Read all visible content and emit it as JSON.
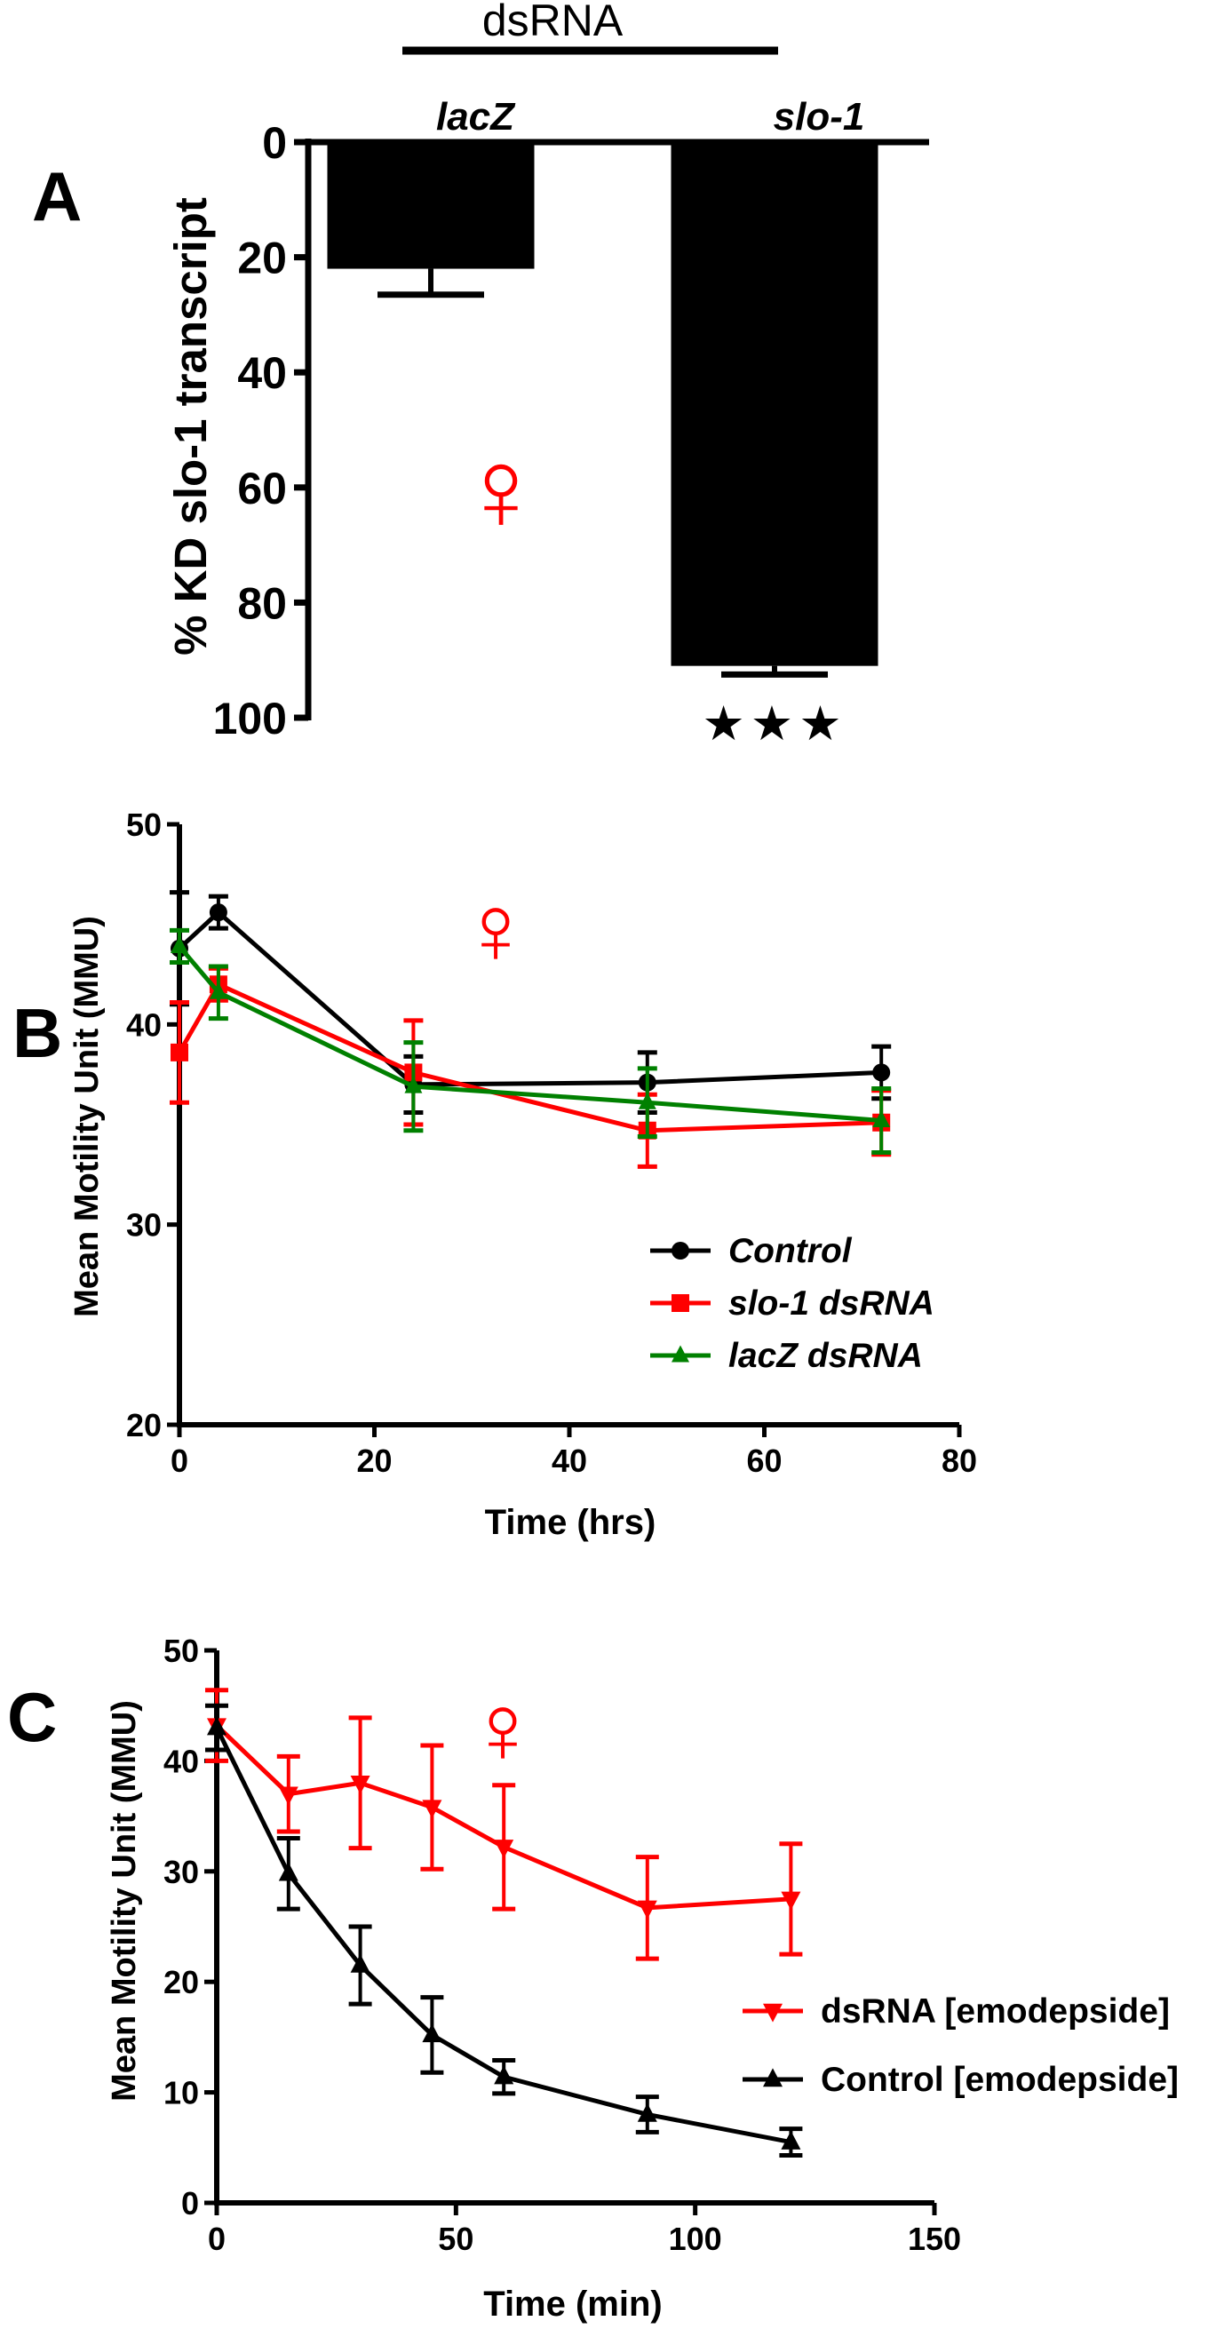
{
  "colors": {
    "black": "#000000",
    "red": "#ff0000",
    "green": "#008000"
  },
  "panel_a": {
    "letter": "A",
    "symbol": "♀",
    "group_label": "dsRNA",
    "significance": "★★★",
    "icon_names": [
      "female-symbol-icon",
      "star-icon"
    ]
  },
  "panel_b": {
    "letter": "B",
    "symbol": "♀"
  },
  "panel_c": {
    "letter": "C",
    "symbol": "♀"
  },
  "chart_data": [
    {
      "type": "bar",
      "panel": "A",
      "categories": [
        "lacZ",
        "slo-1"
      ],
      "values": [
        22,
        91
      ],
      "errors": [
        4.5,
        1.5
      ],
      "ylabel": "% KD slo-1 transcript",
      "ylim": [
        0,
        100
      ],
      "yaxis_inverted": true,
      "yticks": [
        0,
        20,
        40,
        60,
        80,
        100
      ],
      "group_label": "dsRNA",
      "annotation": "★★★"
    },
    {
      "type": "line",
      "panel": "B",
      "xlabel": "Time (hrs)",
      "ylabel": "Mean Motility Unit (MMU)",
      "xlim": [
        0,
        80
      ],
      "ylim": [
        20,
        50
      ],
      "xticks": [
        0,
        20,
        40,
        60,
        80
      ],
      "yticks": [
        20,
        30,
        40,
        50
      ],
      "legend": "bottom-right",
      "series": [
        {
          "name": "Control",
          "color": "#000000",
          "marker": "circle",
          "x": [
            0,
            4,
            24,
            48,
            72
          ],
          "y": [
            43.8,
            45.6,
            37.0,
            37.1,
            37.6
          ],
          "err": [
            2.8,
            0.8,
            1.4,
            1.5,
            1.3
          ]
        },
        {
          "name": "slo-1 dsRNA",
          "color": "#ff0000",
          "marker": "square",
          "x": [
            0,
            4,
            24,
            48,
            72
          ],
          "y": [
            38.6,
            42.0,
            37.6,
            34.7,
            35.1
          ],
          "err": [
            2.5,
            0.8,
            2.6,
            1.8,
            1.6
          ]
        },
        {
          "name": "lacZ dsRNA",
          "color": "#008000",
          "marker": "triangle",
          "x": [
            0,
            4,
            24,
            48,
            72
          ],
          "y": [
            43.9,
            41.6,
            36.9,
            36.1,
            35.2
          ],
          "err": [
            0.8,
            1.3,
            2.2,
            1.7,
            1.6
          ]
        }
      ]
    },
    {
      "type": "line",
      "panel": "C",
      "xlabel": "Time (min)",
      "ylabel": "Mean Motility Unit (MMU)",
      "xlim": [
        0,
        150
      ],
      "ylim": [
        0,
        50
      ],
      "xticks": [
        0,
        50,
        100,
        150
      ],
      "yticks": [
        0,
        10,
        20,
        30,
        40,
        50
      ],
      "legend": "right",
      "series": [
        {
          "name": "dsRNA [emodepside]",
          "color": "#ff0000",
          "marker": "triangle-down",
          "x": [
            0,
            15,
            30,
            45,
            60,
            90,
            120
          ],
          "y": [
            43.2,
            37.0,
            38.0,
            35.8,
            32.2,
            26.7,
            27.5
          ],
          "err": [
            3.2,
            3.4,
            5.9,
            5.6,
            5.6,
            4.6,
            5.0
          ]
        },
        {
          "name": "Control [emodepside]",
          "color": "#000000",
          "marker": "triangle",
          "x": [
            0,
            15,
            30,
            45,
            60,
            90,
            120
          ],
          "y": [
            43.0,
            29.8,
            21.5,
            15.2,
            11.4,
            8.0,
            5.5
          ],
          "err": [
            2.0,
            3.2,
            3.5,
            3.4,
            1.5,
            1.6,
            1.2
          ]
        }
      ]
    }
  ]
}
